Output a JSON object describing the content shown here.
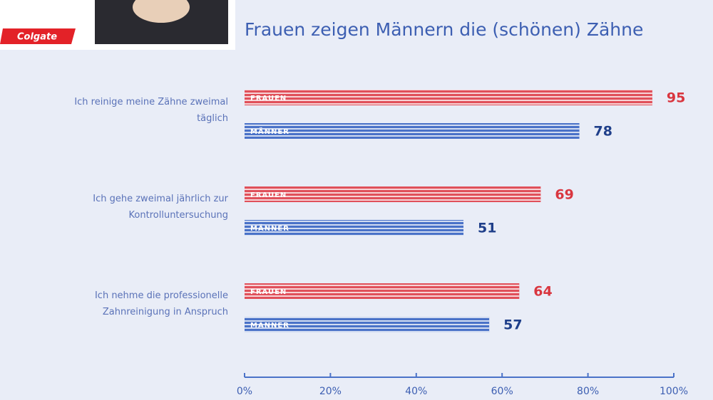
{
  "logo": "Colgate",
  "chart_data": {
    "type": "hbar",
    "title": "Frauen zeigen Männern die (schönen) Zähne",
    "categories": [
      "Ich reinige meine Zähne zweimal täglich",
      "Ich gehe zweimal jährlich zur Kontrolluntersuchung",
      "Ich nehme die professionelle Zahnreinigung in Anspruch"
    ],
    "series": [
      {
        "name": "FRAUEN",
        "color": "#e0505a",
        "values": [
          95,
          69,
          64
        ]
      },
      {
        "name": "MÄNNER",
        "color": "#4a72c8",
        "values": [
          78,
          51,
          57
        ]
      }
    ],
    "xlim": [
      0,
      100
    ],
    "xticks": [
      {
        "value": 0,
        "label": "0%"
      },
      {
        "value": 20,
        "label": "20%"
      },
      {
        "value": 40,
        "label": "40%"
      },
      {
        "value": 60,
        "label": "60%"
      },
      {
        "value": 80,
        "label": "80%"
      },
      {
        "value": 100,
        "label": "100%"
      }
    ]
  }
}
